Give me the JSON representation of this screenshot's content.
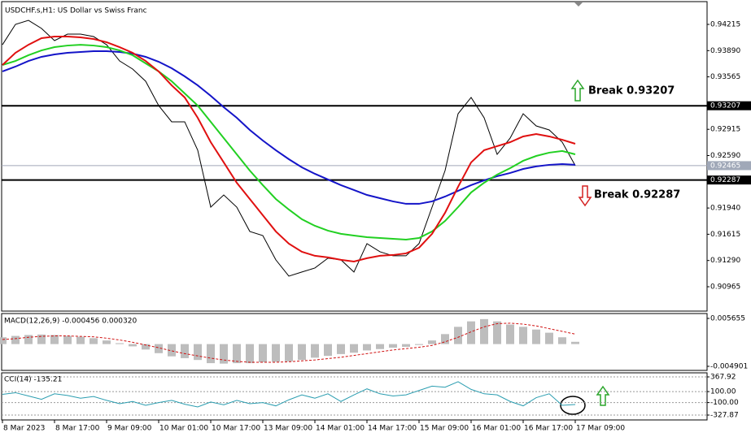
{
  "chart_data": [
    {
      "type": "line",
      "title": "USDCHF.s,H1: US Dollar vs Swiss Franc",
      "ylim": [
        0.90663,
        0.94497
      ],
      "yticks": [
        0.94215,
        {
          "value": 0.9389,
          "label": "0.93890"
        },
        0.93565,
        0.92915,
        {
          "value": 0.9259,
          "label": "0.92590"
        },
        {
          "value": 0.9194,
          "label": "0.91940"
        },
        0.91615,
        {
          "value": 0.9129,
          "label": "0.91290"
        },
        0.90965
      ],
      "series": [
        {
          "color": "#000000",
          "values": [
            0.93963,
            0.94215,
            0.94265,
            0.94165,
            0.94014,
            0.94094,
            0.94094,
            0.94064,
            0.93963,
            0.93762,
            0.93662,
            0.93511,
            0.93209,
            0.93008,
            0.93008,
            0.92656,
            0.91951,
            0.92102,
            0.91951,
            0.9165,
            0.91599,
            0.91298,
            0.91096,
            0.91147,
            0.91197,
            0.91318,
            0.91298,
            0.91147,
            0.91499,
            0.91398,
            0.91348,
            0.91348,
            0.91499,
            0.91951,
            0.92404,
            0.93108,
            0.9331,
            0.93058,
            0.92605,
            0.92807,
            0.93108,
            0.92957,
            0.92907,
            0.92756,
            0.92465
          ]
        },
        {
          "color": "#1414c8",
          "values": [
            0.93632,
            0.93692,
            0.93762,
            0.93813,
            0.93843,
            0.93863,
            0.93873,
            0.93883,
            0.93883,
            0.93873,
            0.93853,
            0.93813,
            0.93752,
            0.93672,
            0.93571,
            0.9346,
            0.9333,
            0.93189,
            0.93058,
            0.92907,
            0.92776,
            0.92656,
            0.92545,
            0.92444,
            0.92364,
            0.92294,
            0.92223,
            0.92163,
            0.92102,
            0.92062,
            0.92022,
            0.91992,
            0.91992,
            0.92022,
            0.92082,
            0.92153,
            0.92223,
            0.92283,
            0.92334,
            0.92374,
            0.92424,
            0.92455,
            0.92475,
            0.92485,
            0.92475
          ]
        },
        {
          "color": "#22d022",
          "values": [
            0.93712,
            0.93762,
            0.93833,
            0.93893,
            0.93933,
            0.93953,
            0.93963,
            0.93953,
            0.93933,
            0.93893,
            0.93833,
            0.93732,
            0.93632,
            0.93511,
            0.9336,
            0.93209,
            0.93008,
            0.92807,
            0.92605,
            0.92404,
            0.92223,
            0.92052,
            0.91921,
            0.91801,
            0.9172,
            0.9166,
            0.9162,
            0.91599,
            0.91579,
            0.91569,
            0.91559,
            0.91549,
            0.91569,
            0.9165,
            0.9178,
            0.91951,
            0.92133,
            0.92253,
            0.92354,
            0.92434,
            0.92525,
            0.92585,
            0.92626,
            0.92646,
            0.92605
          ]
        },
        {
          "color": "#e01010",
          "values": [
            0.93712,
            0.93863,
            0.93963,
            0.94044,
            0.94064,
            0.94064,
            0.94054,
            0.94034,
            0.93994,
            0.93933,
            0.93863,
            0.93762,
            0.93632,
            0.9346,
            0.9331,
            0.93058,
            0.92756,
            0.92505,
            0.92253,
            0.92052,
            0.91851,
            0.9165,
            0.91499,
            0.91398,
            0.91348,
            0.91328,
            0.91298,
            0.91277,
            0.91318,
            0.91348,
            0.91358,
            0.91378,
            0.91448,
            0.9162,
            0.91881,
            0.92203,
            0.92505,
            0.92656,
            0.92706,
            0.92756,
            0.92827,
            0.92857,
            0.92827,
            0.92786,
            0.92736
          ]
        }
      ],
      "levels": [
        {
          "value": 0.93207,
          "annotation": "Break 0.93207"
        },
        {
          "value": 0.92287,
          "annotation": "Break 0.92287"
        }
      ],
      "current": 0.92465
    },
    {
      "type": "macd",
      "label": "MACD(12,26,9) -0.000456 0.000320",
      "ylim": [
        -0.004901,
        0.005655
      ],
      "yticks": [
        0.005655,
        -0.004901
      ],
      "histogram": {
        "color": "#bdbdbd",
        "values": [
          0.0015,
          0.0018,
          0.002,
          0.0021,
          0.002,
          0.0018,
          0.0016,
          0.0013,
          0.0008,
          0.0002,
          -0.0005,
          -0.0012,
          -0.002,
          -0.0027,
          -0.0031,
          -0.0035,
          -0.0042,
          -0.0043,
          -0.0042,
          -0.0042,
          -0.004,
          -0.0039,
          -0.0038,
          -0.0035,
          -0.003,
          -0.0026,
          -0.0022,
          -0.0019,
          -0.0014,
          -0.0011,
          -0.0008,
          -0.0006,
          -0.0002,
          0.0008,
          0.0022,
          0.0038,
          0.005,
          0.0055,
          0.005,
          0.0043,
          0.0038,
          0.0032,
          0.0025,
          0.0015,
          0.0005
        ]
      },
      "signal": {
        "color": "#d01010",
        "values": [
          0.001,
          0.0012,
          0.0015,
          0.0017,
          0.0018,
          0.0018,
          0.0017,
          0.0016,
          0.0013,
          0.0009,
          0.0004,
          -0.0002,
          -0.0008,
          -0.0015,
          -0.0021,
          -0.0026,
          -0.0031,
          -0.0035,
          -0.0038,
          -0.004,
          -0.004,
          -0.004,
          -0.0039,
          -0.0037,
          -0.0035,
          -0.0032,
          -0.0029,
          -0.0025,
          -0.0021,
          -0.0017,
          -0.0013,
          -0.001,
          -0.0007,
          -0.0003,
          0.0005,
          0.0015,
          0.0027,
          0.0038,
          0.0045,
          0.0046,
          0.0044,
          0.004,
          0.0034,
          0.0028,
          0.0022
        ]
      }
    },
    {
      "type": "line",
      "label": "CCI(14) -135.21",
      "grid": true,
      "ylim": [
        -327.87,
        367.92
      ],
      "yticks": [
        367.92,
        {
          "value": 100,
          "label": "100.00"
        },
        {
          "value": -100,
          "label": "-100.00"
        },
        -327.87
      ],
      "series": [
        {
          "color": "#2a9db0",
          "values": [
            50,
            80,
            20,
            -40,
            60,
            30,
            -20,
            10,
            -60,
            -120,
            -80,
            -150,
            -100,
            -60,
            -130,
            -180,
            -90,
            -140,
            -60,
            -120,
            -100,
            -160,
            -50,
            40,
            -20,
            60,
            -80,
            40,
            150,
            60,
            20,
            40,
            120,
            200,
            180,
            280,
            140,
            60,
            40,
            -80,
            -160,
            -10,
            60,
            -150,
            -135.21
          ]
        }
      ],
      "categories": [
        "8 Mar 2023",
        null,
        null,
        null,
        "8 Mar 17:00",
        null,
        null,
        null,
        "9 Mar 09:00",
        null,
        null,
        null,
        "10 Mar 01:00",
        null,
        null,
        null,
        "10 Mar 17:00",
        null,
        null,
        null,
        "13 Mar 09:00",
        null,
        null,
        null,
        "14 Mar 01:00",
        null,
        null,
        null,
        "14 Mar 17:00",
        null,
        null,
        null,
        "15 Mar 09:00",
        null,
        null,
        null,
        "16 Mar 01:00",
        null,
        null,
        null,
        "16 Mar 17:00",
        null,
        null,
        null,
        "17 Mar 09:00"
      ]
    }
  ]
}
